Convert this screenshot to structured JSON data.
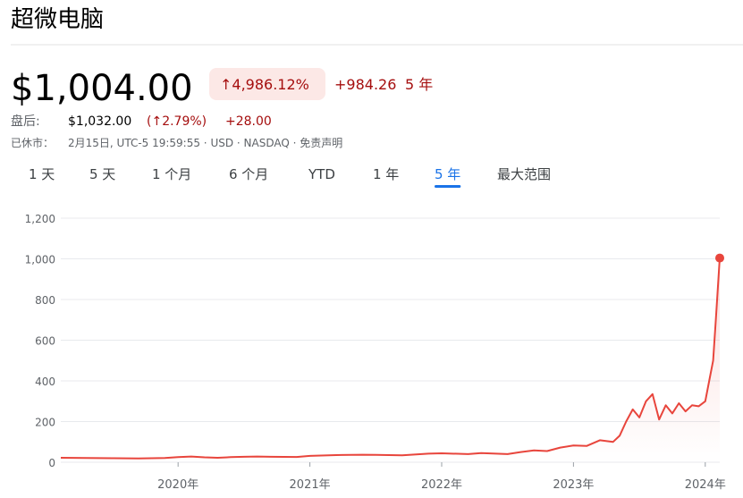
{
  "header": {
    "title": "超微电脑",
    "price": "$1,004.00",
    "change_pct": "↑4,986.12%",
    "change_abs": "+984.26",
    "period": "5 年",
    "after_hours_label": "盘后:",
    "after_hours_price": "$1,032.00",
    "after_hours_pct": "(↑2.79%)",
    "after_hours_abs": "+28.00",
    "status_label": "已休市：",
    "status_text": "2月15日, UTC-5 19:59:55 · USD · NASDAQ · 免责声明"
  },
  "tabs": {
    "items": [
      "1 天",
      "5 天",
      "1 个月",
      "6 个月",
      "YTD",
      "1 年",
      "5 年",
      "最大范围"
    ],
    "selected": 6
  },
  "chart_data": {
    "type": "line",
    "series": [
      {
        "name": "超微电脑",
        "color": "#e8453c",
        "x": [
          2019.11,
          2019.3,
          2019.5,
          2019.7,
          2019.9,
          2020.0,
          2020.1,
          2020.2,
          2020.3,
          2020.4,
          2020.5,
          2020.6,
          2020.7,
          2020.9,
          2021.0,
          2021.2,
          2021.4,
          2021.5,
          2021.7,
          2021.9,
          2022.0,
          2022.2,
          2022.3,
          2022.5,
          2022.6,
          2022.7,
          2022.8,
          2022.9,
          2023.0,
          2023.1,
          2023.2,
          2023.3,
          2023.35,
          2023.4,
          2023.45,
          2023.5,
          2023.55,
          2023.6,
          2023.65,
          2023.7,
          2023.75,
          2023.8,
          2023.85,
          2023.9,
          2023.95,
          2024.0,
          2024.03,
          2024.06,
          2024.08,
          2024.11
        ],
        "values": [
          22,
          21,
          20,
          19,
          21,
          25,
          28,
          24,
          22,
          25,
          27,
          28,
          27,
          26,
          31,
          35,
          37,
          36,
          34,
          42,
          44,
          40,
          45,
          40,
          50,
          58,
          55,
          72,
          82,
          80,
          108,
          100,
          130,
          200,
          260,
          220,
          300,
          335,
          210,
          280,
          240,
          290,
          250,
          280,
          275,
          300,
          400,
          500,
          700,
          1004
        ]
      }
    ],
    "xlim": [
      2019.11,
      2024.11
    ],
    "xticks": [
      {
        "value": 2020,
        "label": "2020年"
      },
      {
        "value": 2021,
        "label": "2021年"
      },
      {
        "value": 2022,
        "label": "2022年"
      },
      {
        "value": 2023,
        "label": "2023年"
      },
      {
        "value": 2024,
        "label": "2024年"
      }
    ],
    "ylim": [
      0,
      1200
    ],
    "yticks": [
      0,
      200,
      400,
      600,
      800,
      {
        "value": 1000,
        "label": "1,000"
      },
      {
        "value": 1200,
        "label": "1,200"
      }
    ],
    "grid": true
  }
}
